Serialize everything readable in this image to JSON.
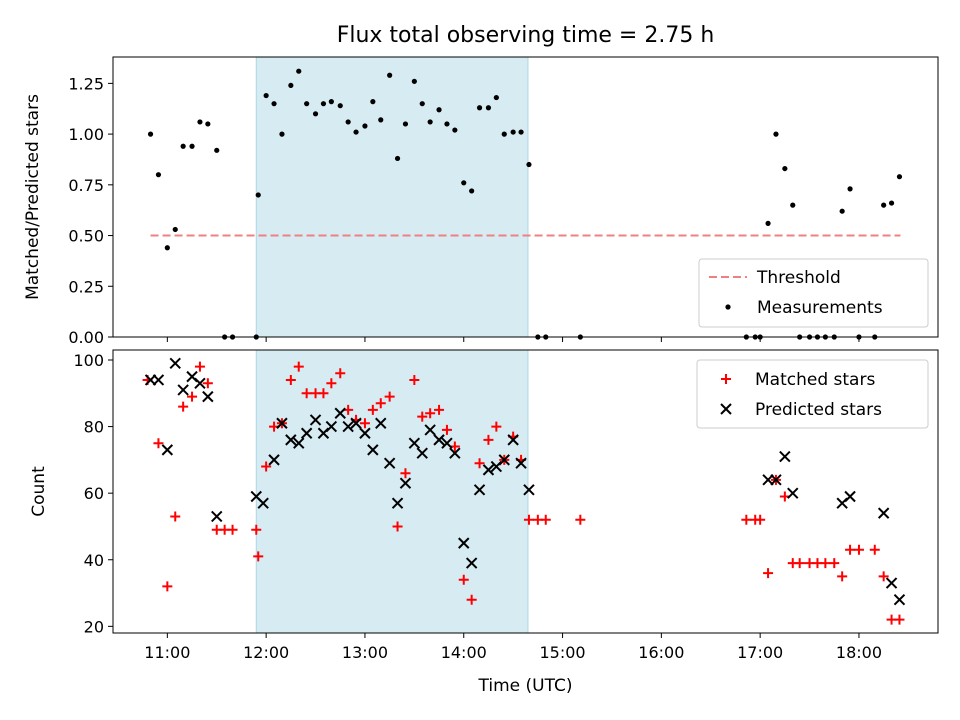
{
  "chart_data": [
    {
      "type": "scatter",
      "title": "Flux total observing time = 2.75 h",
      "ylabel": "Matched/Predicted stars",
      "xlim_hours": [
        10.45,
        18.8
      ],
      "ylim": [
        0,
        1.38
      ],
      "yticks": [
        0.0,
        0.25,
        0.5,
        0.75,
        1.0,
        1.25
      ],
      "ytick_labels": [
        "0.00",
        "0.25",
        "0.50",
        "0.75",
        "1.00",
        "1.25"
      ],
      "shaded_span_hours": [
        11.9,
        14.65
      ],
      "shade_color": "#add8e6",
      "legend_position": "lower-right",
      "threshold": {
        "name": "Threshold",
        "value": 0.5,
        "x_range": [
          10.83,
          18.42
        ],
        "color": "#f08080",
        "style": "dashed"
      },
      "measurements": {
        "name": "Measurements",
        "color": "#000000",
        "x": [
          10.83,
          10.91,
          11.0,
          11.08,
          11.16,
          11.25,
          11.33,
          11.41,
          11.5,
          11.58,
          11.66,
          11.9,
          11.92,
          12.0,
          12.08,
          12.16,
          12.25,
          12.33,
          12.41,
          12.5,
          12.58,
          12.66,
          12.75,
          12.83,
          12.91,
          13.0,
          13.08,
          13.16,
          13.25,
          13.33,
          13.41,
          13.5,
          13.58,
          13.66,
          13.75,
          13.83,
          13.91,
          14.0,
          14.08,
          14.16,
          14.25,
          14.33,
          14.41,
          14.5,
          14.58,
          14.66,
          14.75,
          14.83,
          15.18,
          16.86,
          16.95,
          17.0,
          17.08,
          17.16,
          17.25,
          17.33,
          17.4,
          17.5,
          17.58,
          17.66,
          17.75,
          17.83,
          17.91,
          18.0,
          18.16,
          18.25,
          18.33,
          18.41
        ],
        "y": [
          1.0,
          0.8,
          0.44,
          0.53,
          0.94,
          0.94,
          1.06,
          1.05,
          0.92,
          0.0,
          0.0,
          0.0,
          0.7,
          1.19,
          1.15,
          1.0,
          1.24,
          1.31,
          1.15,
          1.1,
          1.15,
          1.16,
          1.14,
          1.06,
          1.01,
          1.04,
          1.16,
          1.07,
          1.29,
          0.88,
          1.05,
          1.26,
          1.15,
          1.06,
          1.12,
          1.05,
          1.02,
          0.76,
          0.72,
          1.13,
          1.13,
          1.18,
          1.0,
          1.01,
          1.01,
          0.85,
          0.0,
          0.0,
          0.0,
          0.0,
          0.0,
          0.0,
          0.56,
          1.0,
          0.83,
          0.65,
          0.0,
          0.0,
          0.0,
          0.0,
          0.0,
          0.62,
          0.73,
          0.0,
          0.0,
          0.65,
          0.66,
          0.79
        ]
      }
    },
    {
      "type": "scatter",
      "ylabel": "Count",
      "xlabel": "Time (UTC)",
      "xlim_hours": [
        10.45,
        18.8
      ],
      "ylim": [
        18,
        103
      ],
      "yticks": [
        20,
        40,
        60,
        80,
        100
      ],
      "xticks_hours": [
        11,
        12,
        13,
        14,
        15,
        16,
        17,
        18
      ],
      "xtick_labels": [
        "11:00",
        "12:00",
        "13:00",
        "14:00",
        "15:00",
        "16:00",
        "17:00",
        "18:00"
      ],
      "shaded_span_hours": [
        11.9,
        14.65
      ],
      "shade_color": "#add8e6",
      "legend_position": "top-right",
      "series": [
        {
          "name": "Matched stars",
          "marker": "plus",
          "color": "#ff0000",
          "x": [
            10.8,
            10.91,
            11.0,
            11.08,
            11.16,
            11.25,
            11.33,
            11.41,
            11.5,
            11.58,
            11.66,
            11.9,
            11.92,
            12.0,
            12.08,
            12.16,
            12.25,
            12.33,
            12.41,
            12.5,
            12.58,
            12.66,
            12.75,
            12.83,
            12.91,
            13.0,
            13.08,
            13.16,
            13.25,
            13.33,
            13.41,
            13.5,
            13.58,
            13.66,
            13.75,
            13.83,
            13.91,
            14.0,
            14.08,
            14.16,
            14.25,
            14.33,
            14.41,
            14.5,
            14.58,
            14.66,
            14.75,
            14.83,
            15.18,
            16.86,
            16.95,
            17.0,
            17.08,
            17.16,
            17.25,
            17.33,
            17.4,
            17.5,
            17.58,
            17.66,
            17.75,
            17.83,
            17.91,
            18.0,
            18.16,
            18.25,
            18.33,
            18.41
          ],
          "y": [
            94,
            75,
            32,
            53,
            86,
            89,
            98,
            93,
            49,
            49,
            49,
            49,
            41,
            68,
            80,
            81,
            94,
            98,
            90,
            90,
            90,
            93,
            96,
            85,
            82,
            81,
            85,
            87,
            89,
            50,
            66,
            94,
            83,
            84,
            85,
            79,
            74,
            34,
            28,
            69,
            76,
            80,
            70,
            77,
            70,
            52,
            52,
            52,
            52,
            52,
            52,
            52,
            36,
            64,
            59,
            39,
            39,
            39,
            39,
            39,
            39,
            35,
            43,
            43,
            43,
            35,
            22,
            22
          ]
        },
        {
          "name": "Predicted stars",
          "marker": "x",
          "color": "#000000",
          "x": [
            10.83,
            10.91,
            11.0,
            11.08,
            11.16,
            11.25,
            11.33,
            11.41,
            11.5,
            11.9,
            11.97,
            12.08,
            12.16,
            12.25,
            12.33,
            12.41,
            12.5,
            12.58,
            12.66,
            12.75,
            12.83,
            12.91,
            13.0,
            13.08,
            13.16,
            13.25,
            13.33,
            13.41,
            13.5,
            13.58,
            13.66,
            13.75,
            13.83,
            13.91,
            14.0,
            14.08,
            14.16,
            14.25,
            14.33,
            14.41,
            14.5,
            14.58,
            14.66,
            17.08,
            17.16,
            17.25,
            17.33,
            17.83,
            17.91,
            18.25,
            18.33,
            18.41
          ],
          "y": [
            94,
            94,
            73,
            99,
            91,
            95,
            93,
            89,
            53,
            59,
            57,
            70,
            81,
            76,
            75,
            78,
            82,
            78,
            80,
            84,
            80,
            81,
            78,
            73,
            81,
            69,
            57,
            63,
            75,
            72,
            79,
            76,
            75,
            72,
            45,
            39,
            61,
            67,
            68,
            70,
            76,
            69,
            61,
            64,
            64,
            71,
            60,
            57,
            59,
            54,
            33,
            28
          ]
        }
      ]
    }
  ]
}
